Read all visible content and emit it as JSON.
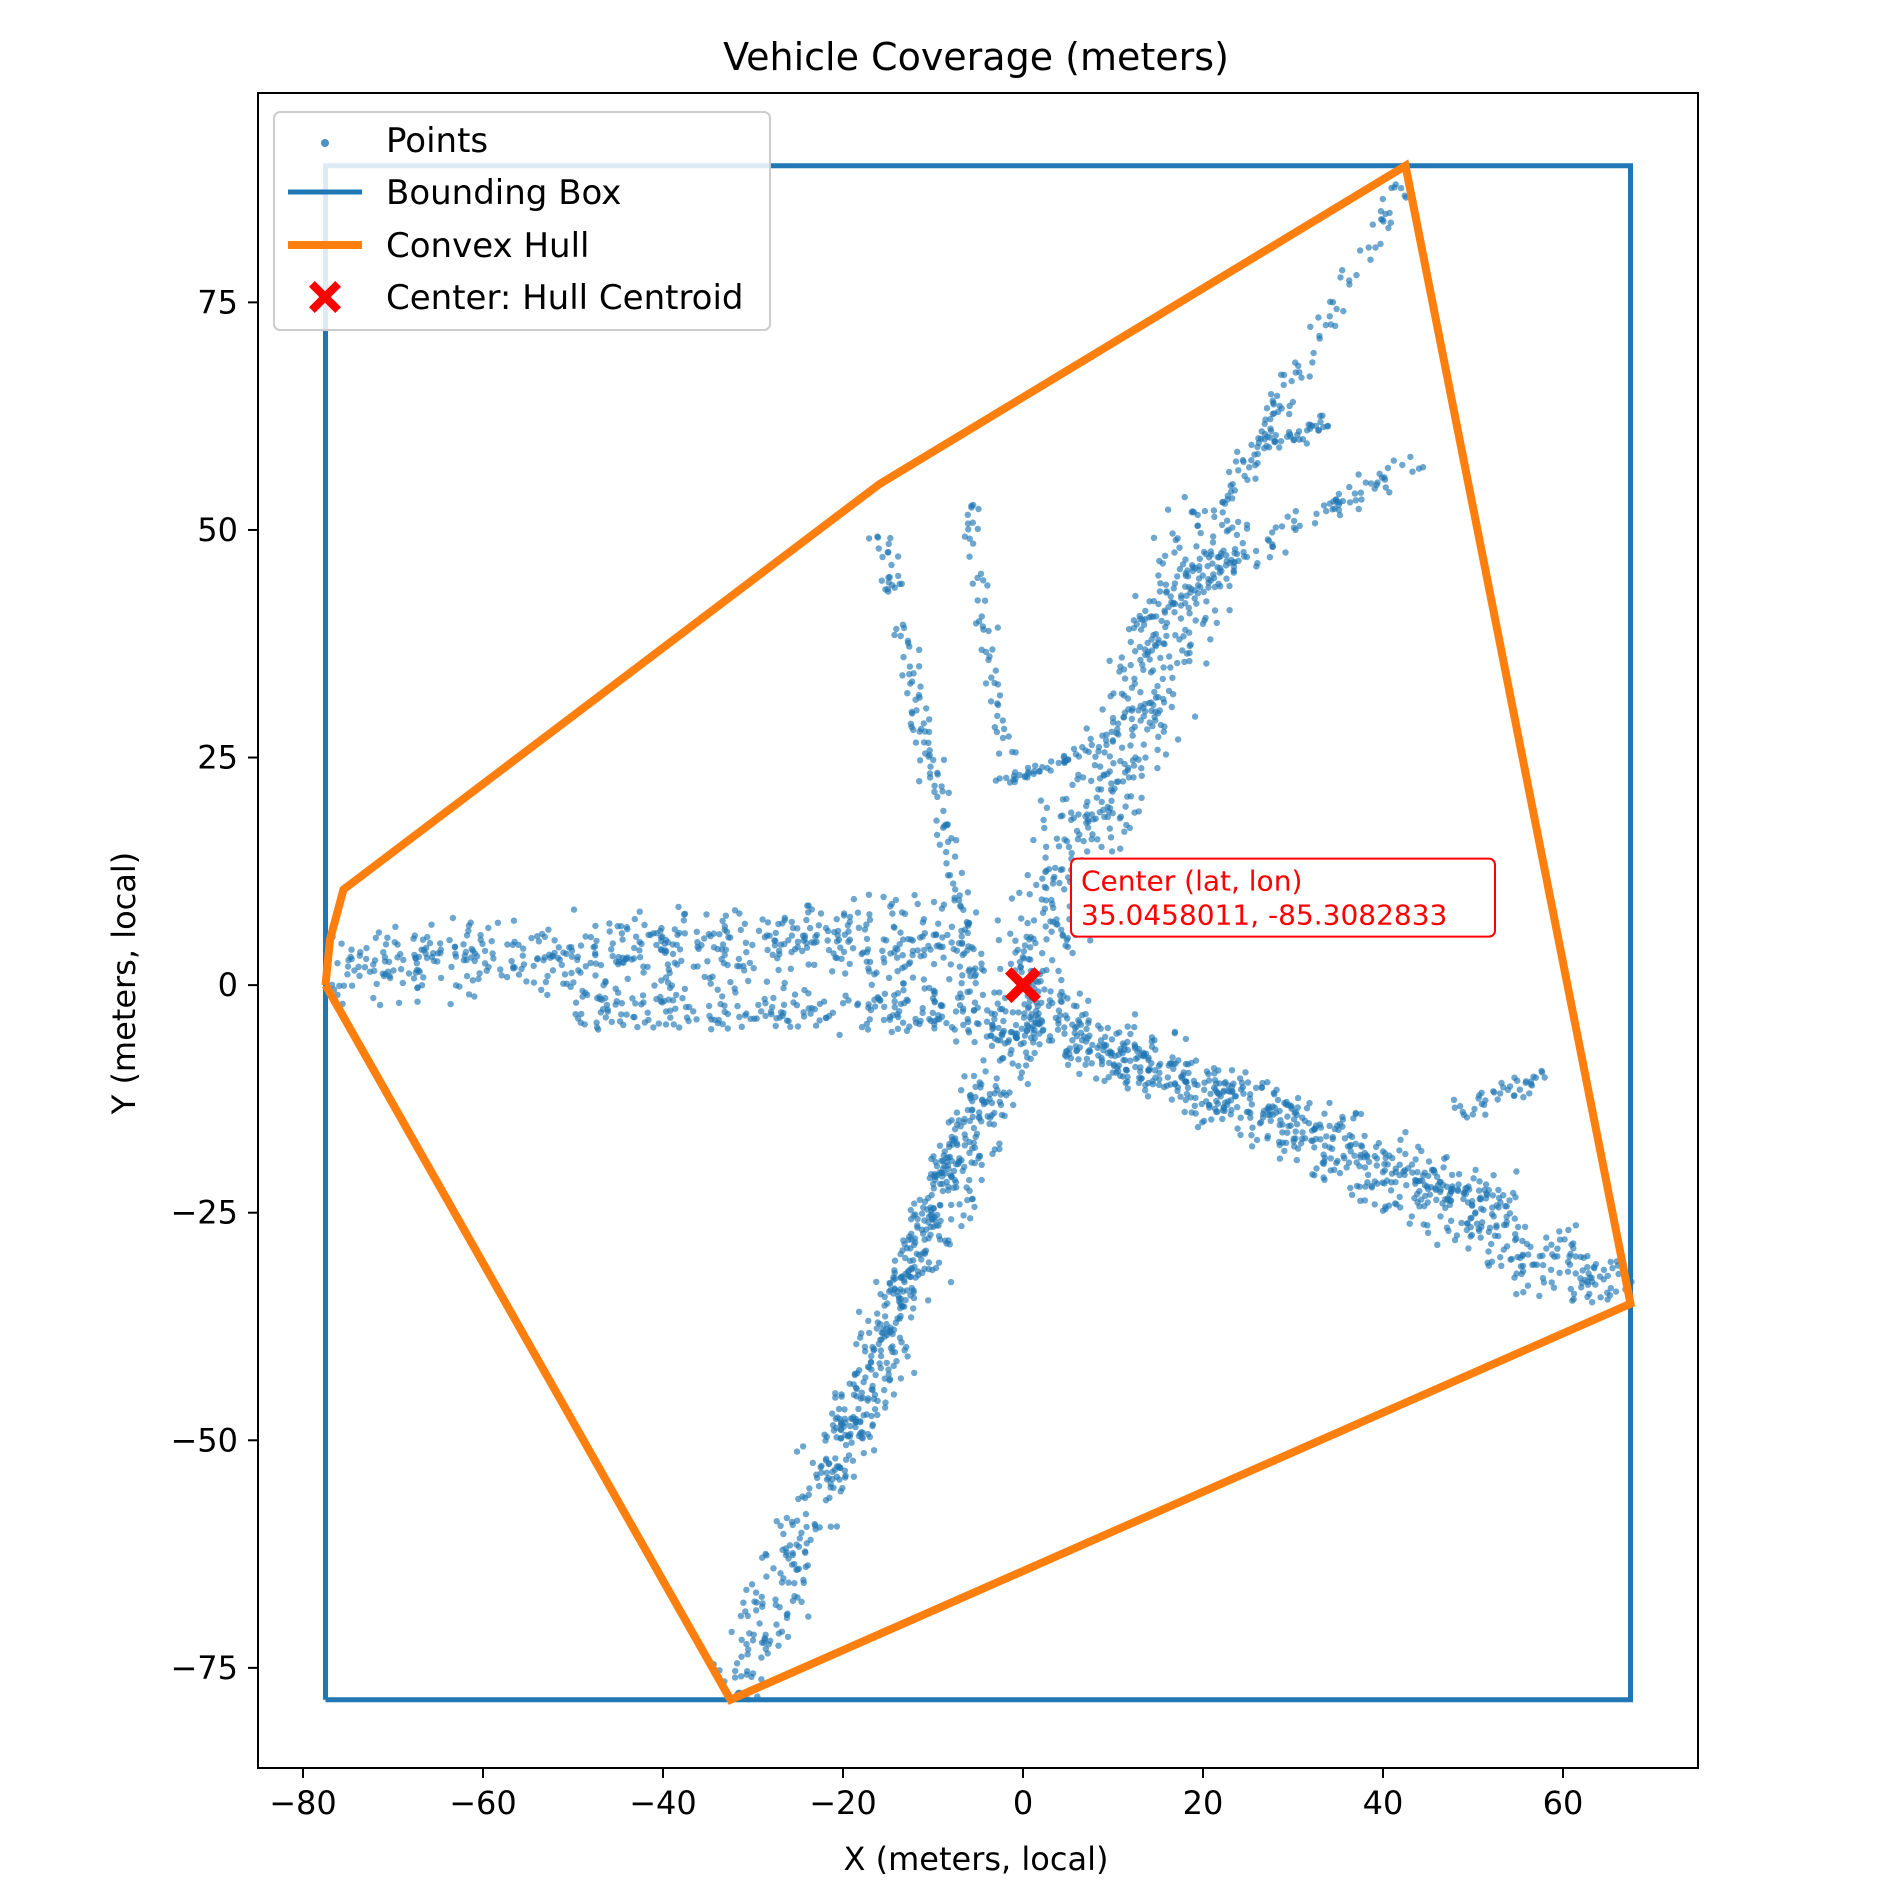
{
  "chart_data": {
    "type": "scatter",
    "title": "Vehicle Coverage (meters)",
    "xlabel": "X (meters, local)",
    "ylabel": "Y (meters, local)",
    "xlim": [
      -85,
      75
    ],
    "ylim": [
      -86,
      98
    ],
    "xticks": [
      -80,
      -60,
      -40,
      -20,
      0,
      20,
      40,
      60
    ],
    "yticks": [
      -75,
      -50,
      -25,
      0,
      25,
      50,
      75
    ],
    "xtick_labels": [
      "−80",
      "−60",
      "−40",
      "−20",
      "0",
      "20",
      "40",
      "60"
    ],
    "ytick_labels": [
      "−75",
      "−50",
      "−25",
      "0",
      "25",
      "50",
      "75"
    ],
    "grid": false,
    "legend": {
      "position": "upper left",
      "entries": [
        "Points",
        "Bounding Box",
        "Convex Hull",
        "Center: Hull Centroid"
      ]
    },
    "colors": {
      "points": "#1f77b4",
      "bounding_box": "#1f77b4",
      "convex_hull": "#ff7f0e",
      "center": "#ff0000"
    },
    "points_strips": [
      {
        "from": [
          -77,
          2
        ],
        "to": [
          -22,
          5
        ],
        "width": 12
      },
      {
        "from": [
          -22,
          5
        ],
        "to": [
          -5,
          4
        ],
        "width": 14
      },
      {
        "from": [
          -50,
          -3
        ],
        "to": [
          -8,
          -3
        ],
        "width": 8
      },
      {
        "from": [
          -8,
          -3
        ],
        "to": [
          2,
          -4
        ],
        "width": 10
      },
      {
        "from": [
          0,
          -2
        ],
        "to": [
          67,
          -34
        ],
        "width": 12
      },
      {
        "from": [
          5,
          -6
        ],
        "to": [
          55,
          -24
        ],
        "width": 8
      },
      {
        "from": [
          0,
          0
        ],
        "to": [
          22,
          52
        ],
        "width": 14
      },
      {
        "from": [
          22,
          52
        ],
        "to": [
          42,
          88
        ],
        "width": 4
      },
      {
        "from": [
          0,
          -4
        ],
        "to": [
          -32,
          -78
        ],
        "width": 10
      },
      {
        "from": [
          -5,
          -10
        ],
        "to": [
          -22,
          -55
        ],
        "width": 6
      },
      {
        "from": [
          12,
          40
        ],
        "to": [
          44,
          58
        ],
        "width": 5
      },
      {
        "from": [
          -5,
          0
        ],
        "to": [
          -16,
          50
        ],
        "width": 4
      },
      {
        "from": [
          -2,
          25
        ],
        "to": [
          -6,
          53
        ],
        "width": 3
      },
      {
        "from": [
          -3,
          22
        ],
        "to": [
          8,
          26
        ],
        "width": 2
      },
      {
        "from": [
          24,
          58
        ],
        "to": [
          34,
          62
        ],
        "width": 3
      },
      {
        "from": [
          48,
          -14
        ],
        "to": [
          58,
          -10
        ],
        "width": 4
      }
    ],
    "bounding_box": {
      "xmin": -77.5,
      "xmax": 67.5,
      "ymin": -78.5,
      "ymax": 90
    },
    "convex_hull": [
      [
        -77.5,
        0
      ],
      [
        -77,
        5
      ],
      [
        -75.5,
        10.5
      ],
      [
        -16,
        55
      ],
      [
        42.5,
        90
      ],
      [
        67.5,
        -35
      ],
      [
        -32.5,
        -78.5
      ],
      [
        -77.5,
        0
      ]
    ],
    "center": {
      "x": 0,
      "y": 0
    },
    "annotation": {
      "x": 6,
      "y": 9.5,
      "line1": "Center (lat, lon)",
      "line2": "35.0458011, -85.3082833"
    }
  }
}
